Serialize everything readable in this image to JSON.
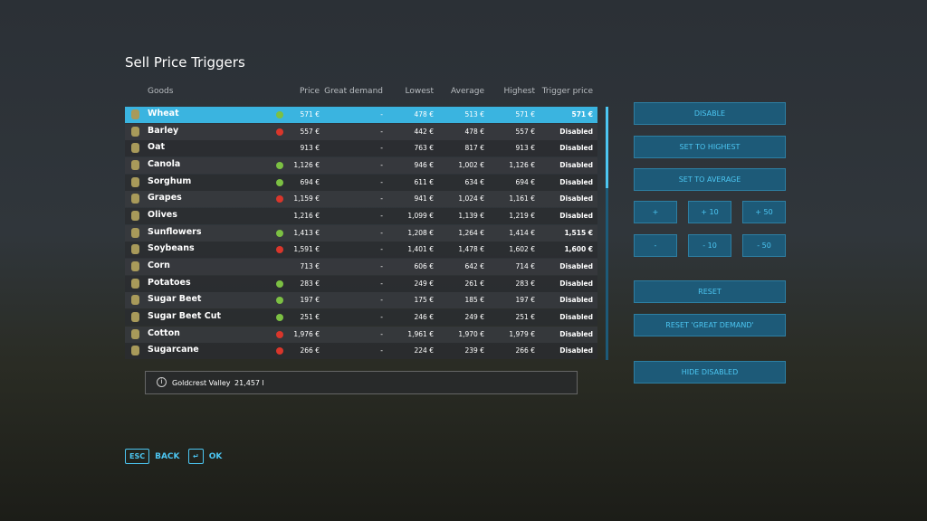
{
  "header": {
    "title": "Sell Price Triggers"
  },
  "table": {
    "columns": [
      "Goods",
      "Price",
      "Great demand",
      "Lowest",
      "Average",
      "Highest",
      "Trigger price"
    ],
    "rows": [
      {
        "good": "Wheat",
        "trend": "up",
        "cells": [
          "571 €",
          "-",
          "478 €",
          "513 €",
          "571 €",
          "571 €"
        ]
      },
      {
        "good": "Barley",
        "trend": "down",
        "cells": [
          "557 €",
          "-",
          "442 €",
          "478 €",
          "557 €",
          "Disabled"
        ]
      },
      {
        "good": "Oat",
        "cells": [
          "913 €",
          "-",
          "763 €",
          "817 €",
          "913 €",
          "Disabled"
        ]
      },
      {
        "good": "Canola",
        "trend": "up",
        "cells": [
          "1,126 €",
          "-",
          "946 €",
          "1,002 €",
          "1,126 €",
          "Disabled"
        ]
      },
      {
        "good": "Sorghum",
        "trend": "up",
        "cells": [
          "694 €",
          "-",
          "611 €",
          "634 €",
          "694 €",
          "Disabled"
        ]
      },
      {
        "good": "Grapes",
        "trend": "down",
        "cells": [
          "1,159 €",
          "-",
          "941 €",
          "1,024 €",
          "1,161 €",
          "Disabled"
        ]
      },
      {
        "good": "Olives",
        "cells": [
          "1,216 €",
          "-",
          "1,099 €",
          "1,139 €",
          "1,219 €",
          "Disabled"
        ]
      },
      {
        "good": "Sunflowers",
        "trend": "up",
        "cells": [
          "1,413 €",
          "-",
          "1,208 €",
          "1,264 €",
          "1,414 €",
          "1,515 €"
        ]
      },
      {
        "good": "Soybeans",
        "trend": "down",
        "cells": [
          "1,591 €",
          "-",
          "1,401 €",
          "1,478 €",
          "1,602 €",
          "1,600 €"
        ]
      },
      {
        "good": "Corn",
        "cells": [
          "713 €",
          "-",
          "606 €",
          "642 €",
          "714 €",
          "Disabled"
        ]
      },
      {
        "good": "Potatoes",
        "trend": "up",
        "cells": [
          "283 €",
          "-",
          "249 €",
          "261 €",
          "283 €",
          "Disabled"
        ]
      },
      {
        "good": "Sugar Beet",
        "trend": "up",
        "cells": [
          "197 €",
          "-",
          "175 €",
          "185 €",
          "197 €",
          "Disabled"
        ]
      },
      {
        "good": "Sugar Beet Cut",
        "trend": "up",
        "cells": [
          "251 €",
          "-",
          "246 €",
          "249 €",
          "251 €",
          "Disabled"
        ]
      },
      {
        "good": "Cotton",
        "trend": "down",
        "cells": [
          "1,976 €",
          "-",
          "1,961 €",
          "1,970 €",
          "1,979 €",
          "Disabled"
        ]
      },
      {
        "good": "Sugarcane",
        "trend": "down",
        "cells": [
          "266 €",
          "-",
          "224 €",
          "239 €",
          "266 €",
          "Disabled"
        ]
      }
    ]
  },
  "buttons": [
    "DISABLE",
    "SET TO HIGHEST",
    "SET TO AVERAGE",
    "+",
    "+ 10",
    "+ 50",
    "-",
    "- 10",
    "- 50",
    "RESET",
    "RESET 'GREAT DEMAND'",
    "HIDE DISABLED"
  ],
  "info": {
    "farm": "Goldcrest Valley",
    "amount": "21,457 l"
  },
  "footer": [
    {
      "key": "ESC",
      "label": "BACK"
    },
    {
      "key": "↵",
      "label": "OK"
    }
  ]
}
